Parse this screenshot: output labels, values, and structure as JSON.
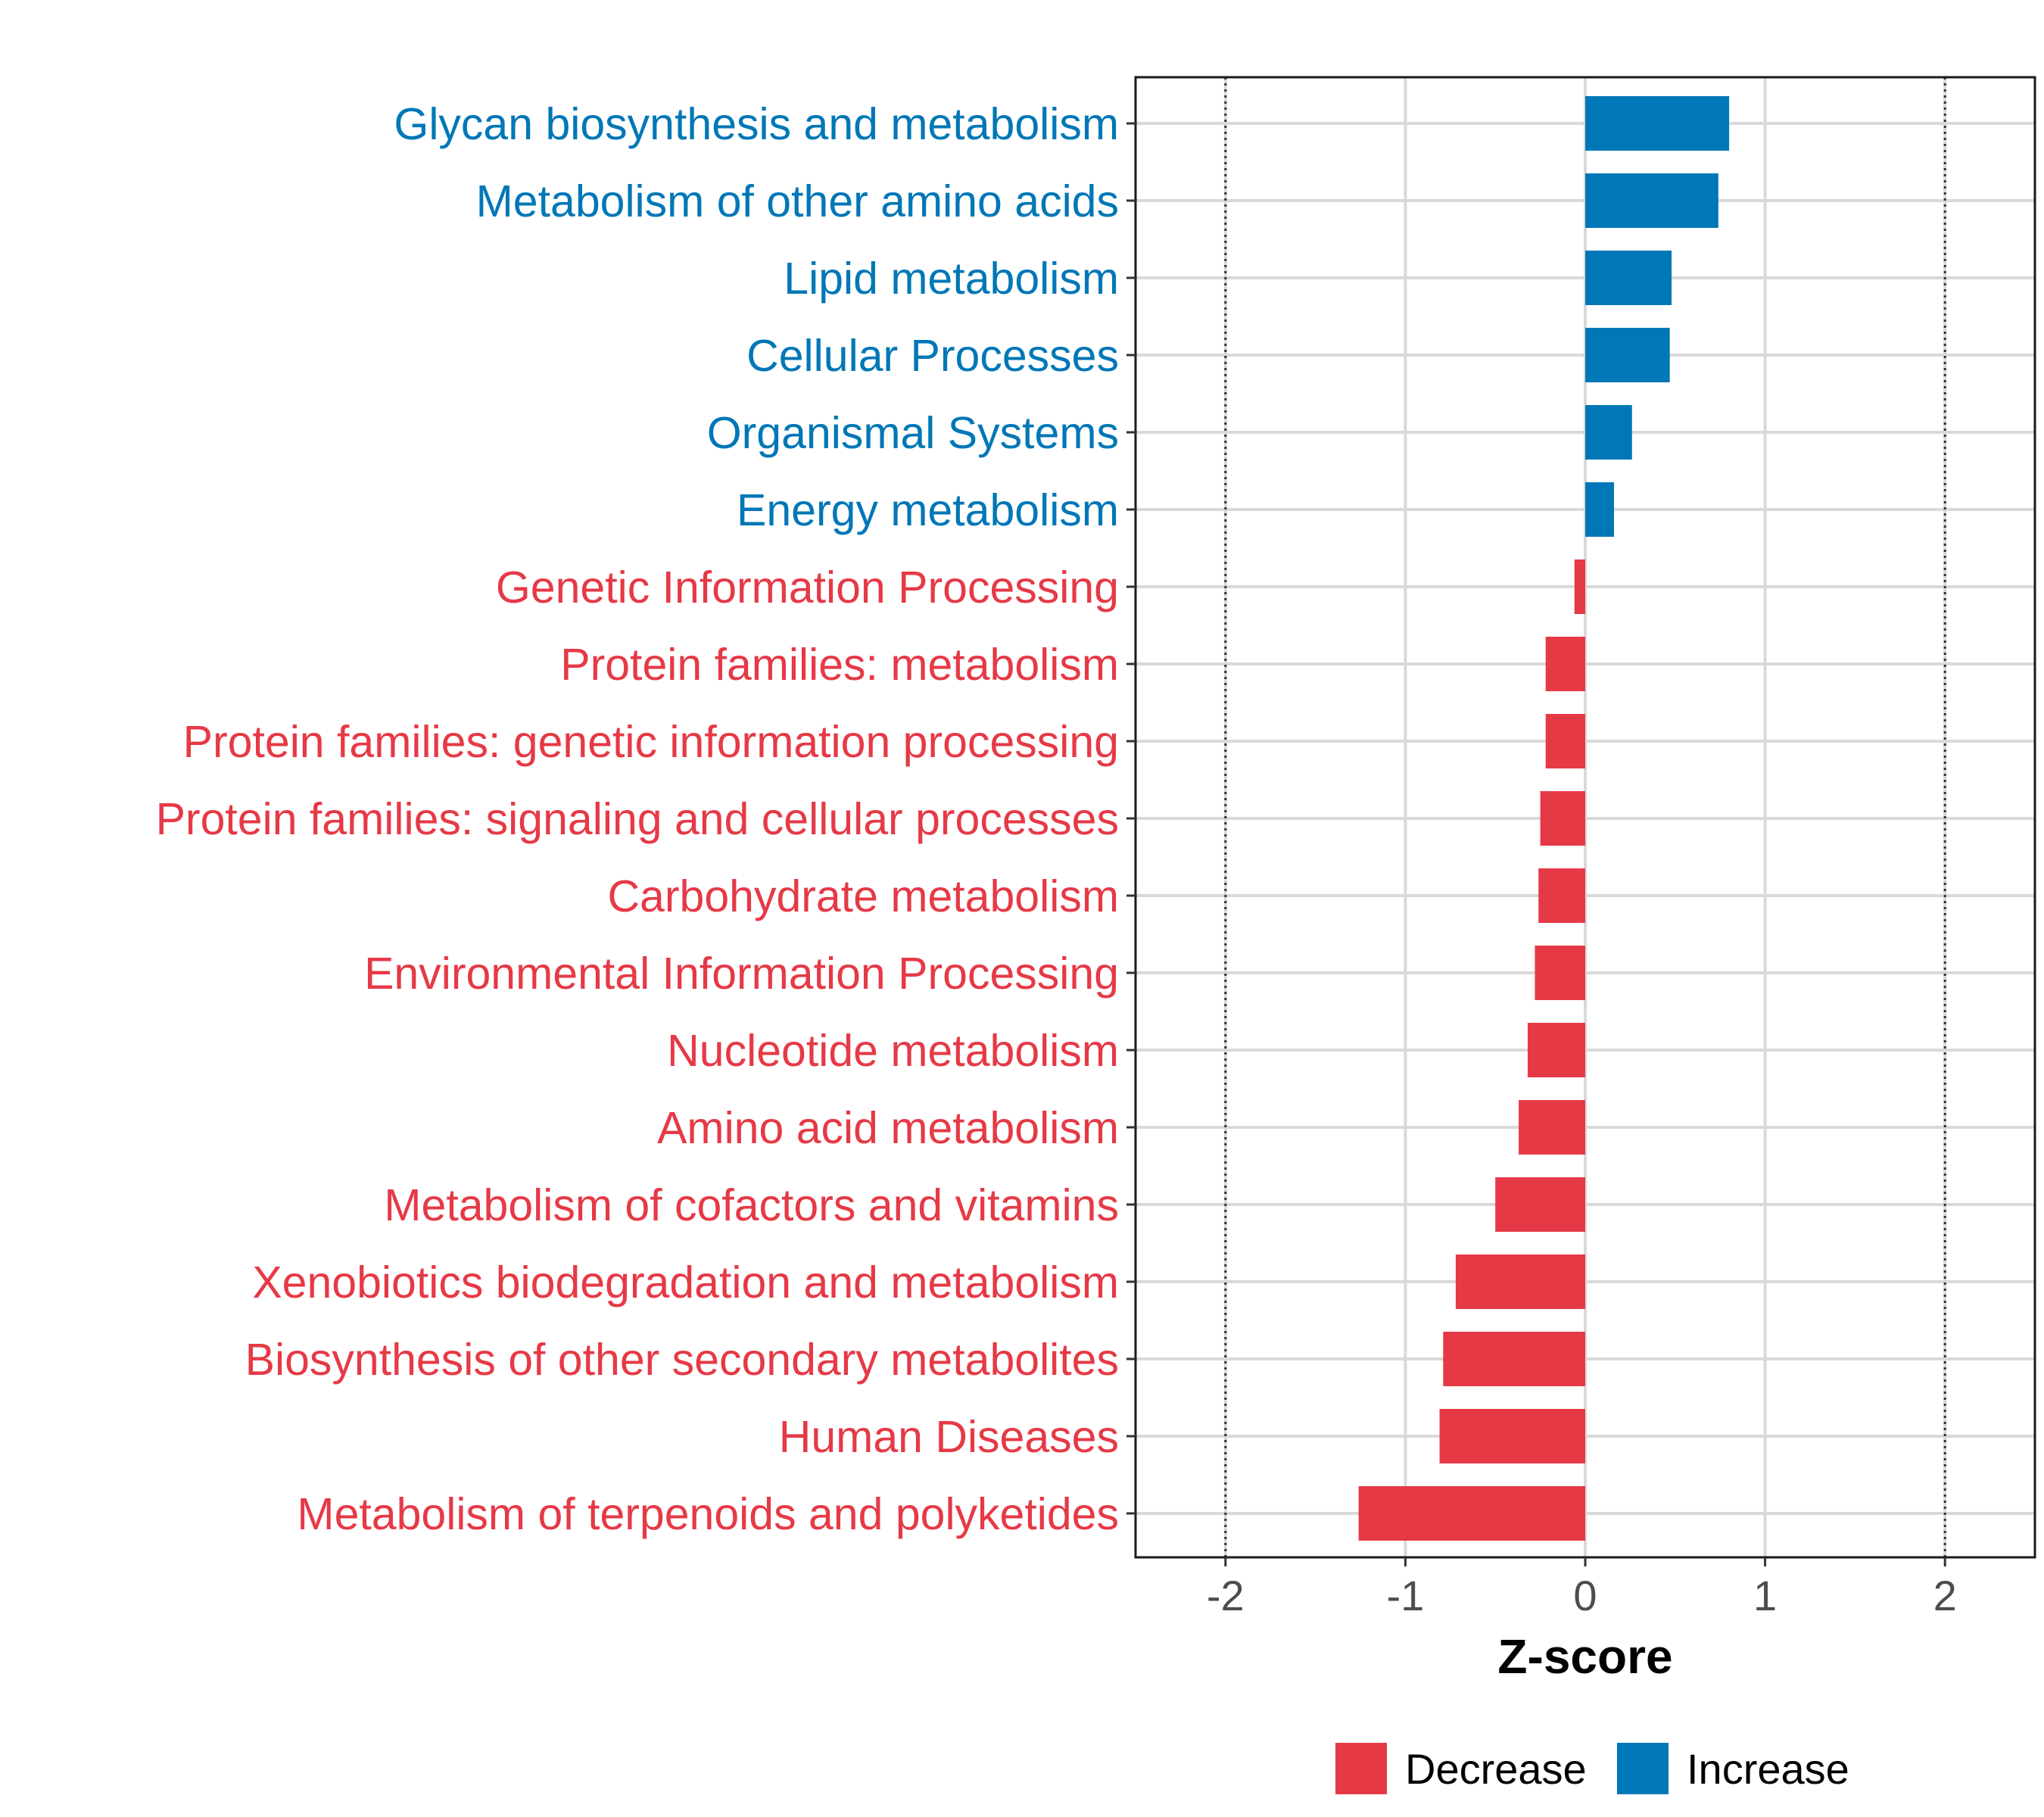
{
  "chart_data": {
    "type": "bar",
    "orientation": "horizontal",
    "xlabel": "Z-score",
    "xlim": [
      -2.5,
      2.5
    ],
    "xticks": [
      -2,
      -1,
      0,
      1,
      2
    ],
    "xtick_labels": [
      "-2",
      "-1",
      "0",
      "1",
      "2"
    ],
    "reference_lines": [
      -2,
      2
    ],
    "grid": true,
    "legend_position": "bottom",
    "colors": {
      "Decrease": "#e63946",
      "Increase": "#0077b6"
    },
    "legend": [
      {
        "label": "Decrease",
        "color": "#e63946"
      },
      {
        "label": "Increase",
        "color": "#0077b6"
      }
    ],
    "bars": [
      {
        "category": "Glycan biosynthesis and metabolism",
        "value": 0.8,
        "group": "Increase"
      },
      {
        "category": "Metabolism of other amino acids",
        "value": 0.74,
        "group": "Increase"
      },
      {
        "category": "Lipid metabolism",
        "value": 0.48,
        "group": "Increase"
      },
      {
        "category": "Cellular Processes",
        "value": 0.47,
        "group": "Increase"
      },
      {
        "category": "Organismal Systems",
        "value": 0.26,
        "group": "Increase"
      },
      {
        "category": "Energy metabolism",
        "value": 0.16,
        "group": "Increase"
      },
      {
        "category": "Genetic Information Processing",
        "value": -0.06,
        "group": "Decrease"
      },
      {
        "category": "Protein families: metabolism",
        "value": -0.22,
        "group": "Decrease"
      },
      {
        "category": "Protein families: genetic information processing",
        "value": -0.22,
        "group": "Decrease"
      },
      {
        "category": "Protein families: signaling and cellular processes",
        "value": -0.25,
        "group": "Decrease"
      },
      {
        "category": "Carbohydrate metabolism",
        "value": -0.26,
        "group": "Decrease"
      },
      {
        "category": "Environmental Information Processing",
        "value": -0.28,
        "group": "Decrease"
      },
      {
        "category": "Nucleotide metabolism",
        "value": -0.32,
        "group": "Decrease"
      },
      {
        "category": "Amino acid metabolism",
        "value": -0.37,
        "group": "Decrease"
      },
      {
        "category": "Metabolism of cofactors and vitamins",
        "value": -0.5,
        "group": "Decrease"
      },
      {
        "category": "Xenobiotics biodegradation and metabolism",
        "value": -0.72,
        "group": "Decrease"
      },
      {
        "category": "Biosynthesis of other secondary metabolites",
        "value": -0.79,
        "group": "Decrease"
      },
      {
        "category": "Human Diseases",
        "value": -0.81,
        "group": "Decrease"
      },
      {
        "category": "Metabolism of terpenoids and polyketides",
        "value": -1.26,
        "group": "Decrease"
      }
    ]
  }
}
